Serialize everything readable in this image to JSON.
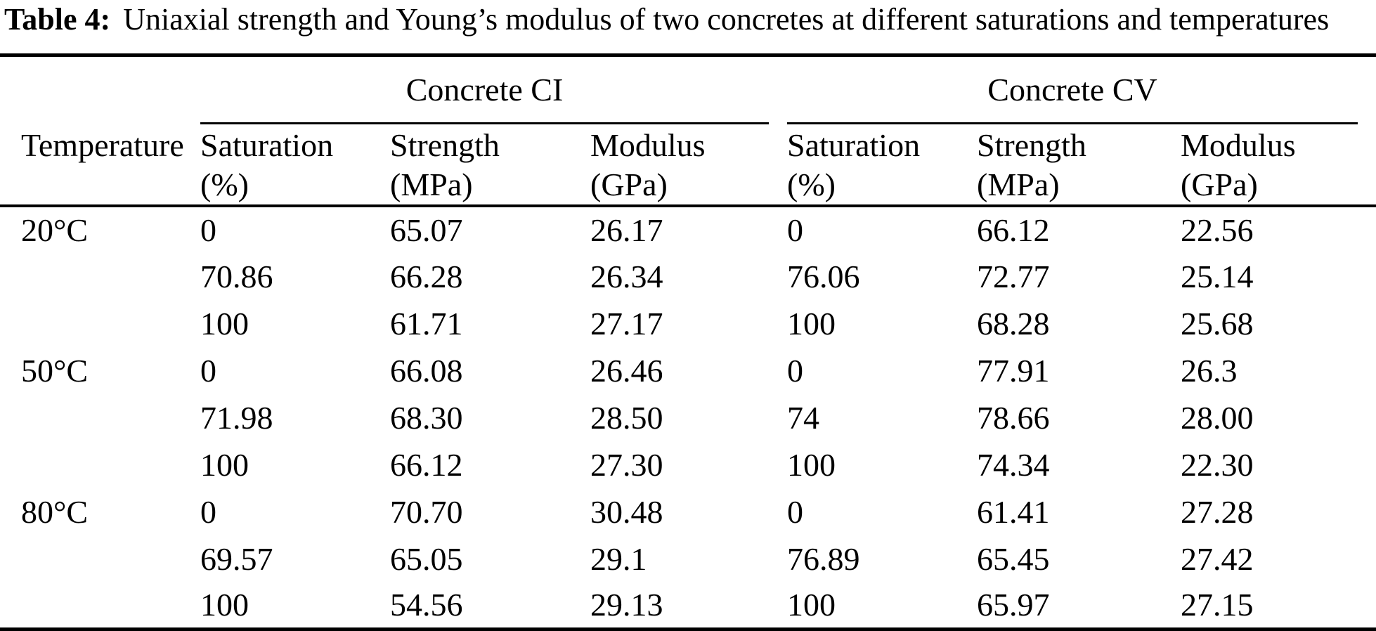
{
  "colors": {
    "background": "#ffffff",
    "text": "#000000",
    "rule": "#000000"
  },
  "table": {
    "label": "Table 4:",
    "caption": "Uniaxial strength and Young’s modulus of two concretes at different saturations and temperatures",
    "groups": [
      {
        "label": "Concrete CI"
      },
      {
        "label": "Concrete CV"
      }
    ],
    "columns": {
      "temperature": "Temperature",
      "ci": [
        [
          "Saturation",
          "(%)"
        ],
        [
          "Strength",
          "(MPa)"
        ],
        [
          "Modulus",
          "(GPa)"
        ]
      ],
      "cv": [
        [
          "Saturation",
          "(%)"
        ],
        [
          "Strength",
          "(MPa)"
        ],
        [
          "Modulus",
          "(GPa)"
        ]
      ]
    },
    "rows": [
      {
        "temperature": "20°C",
        "ci": [
          "0",
          "65.07",
          "26.17"
        ],
        "cv": [
          "0",
          "66.12",
          "22.56"
        ]
      },
      {
        "temperature": "",
        "ci": [
          "70.86",
          "66.28",
          "26.34"
        ],
        "cv": [
          "76.06",
          "72.77",
          "25.14"
        ]
      },
      {
        "temperature": "",
        "ci": [
          "100",
          "61.71",
          "27.17"
        ],
        "cv": [
          "100",
          "68.28",
          "25.68"
        ]
      },
      {
        "temperature": "50°C",
        "ci": [
          "0",
          "66.08",
          "26.46"
        ],
        "cv": [
          "0",
          "77.91",
          "26.3"
        ]
      },
      {
        "temperature": "",
        "ci": [
          "71.98",
          "68.30",
          "28.50"
        ],
        "cv": [
          "74",
          "78.66",
          "28.00"
        ]
      },
      {
        "temperature": "",
        "ci": [
          "100",
          "66.12",
          "27.30"
        ],
        "cv": [
          "100",
          "74.34",
          "22.30"
        ]
      },
      {
        "temperature": "80°C",
        "ci": [
          "0",
          "70.70",
          "30.48"
        ],
        "cv": [
          "0",
          "61.41",
          "27.28"
        ]
      },
      {
        "temperature": "",
        "ci": [
          "69.57",
          "65.05",
          "29.1"
        ],
        "cv": [
          "76.89",
          "65.45",
          "27.42"
        ]
      },
      {
        "temperature": "",
        "ci": [
          "100",
          "54.56",
          "29.13"
        ],
        "cv": [
          "100",
          "65.97",
          "27.15"
        ]
      }
    ]
  }
}
